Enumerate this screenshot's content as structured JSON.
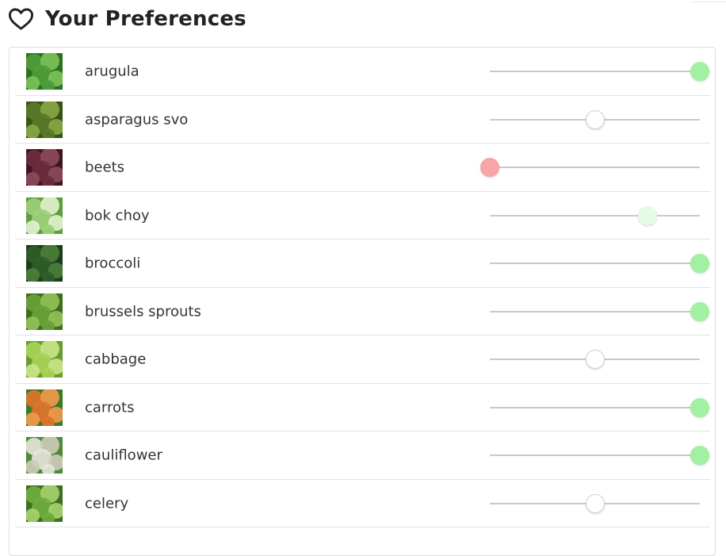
{
  "header": {
    "title": "Your Preferences",
    "icon": "heart-outline-icon"
  },
  "colors": {
    "like": "#a2f0a2",
    "like_soft": "#e4fbe4",
    "neutral": "#ffffff",
    "dislike": "#f8a5a5",
    "track": "#c8c8c8"
  },
  "items": [
    {
      "label": "arugula",
      "preference": 1.0,
      "state": "like",
      "thumb": [
        "#4f9f3a",
        "#7cc35a",
        "#2f6f23"
      ]
    },
    {
      "label": "asparagus svo",
      "preference": 0.5,
      "state": "neutral",
      "thumb": [
        "#5a7a2a",
        "#8aa845",
        "#3b5218"
      ]
    },
    {
      "label": "beets",
      "preference": 0.0,
      "state": "dislike",
      "thumb": [
        "#6b2d3e",
        "#8e4a5c",
        "#3e1620"
      ]
    },
    {
      "label": "bok choy",
      "preference": 0.75,
      "state": "like_soft",
      "thumb": [
        "#9fd07a",
        "#e3f2d0",
        "#5e9e3e"
      ]
    },
    {
      "label": "broccoli",
      "preference": 1.0,
      "state": "like",
      "thumb": [
        "#2f5e2a",
        "#4d7f3d",
        "#1d3c1a"
      ]
    },
    {
      "label": "brussels sprouts",
      "preference": 1.0,
      "state": "like",
      "thumb": [
        "#6aa23a",
        "#93c355",
        "#3f6e1f"
      ]
    },
    {
      "label": "cabbage",
      "preference": 0.5,
      "state": "neutral",
      "thumb": [
        "#a8d45a",
        "#cbe78a",
        "#6b9a2e"
      ]
    },
    {
      "label": "carrots",
      "preference": 1.0,
      "state": "like",
      "thumb": [
        "#e0742a",
        "#f39a4a",
        "#3c7a2a"
      ]
    },
    {
      "label": "cauliflower",
      "preference": 1.0,
      "state": "like",
      "thumb": [
        "#e8e6dc",
        "#cfcbb8",
        "#4e8a3a"
      ]
    },
    {
      "label": "celery",
      "preference": 0.5,
      "state": "neutral",
      "thumb": [
        "#6fae3f",
        "#a7d36f",
        "#3d6e22"
      ]
    }
  ]
}
